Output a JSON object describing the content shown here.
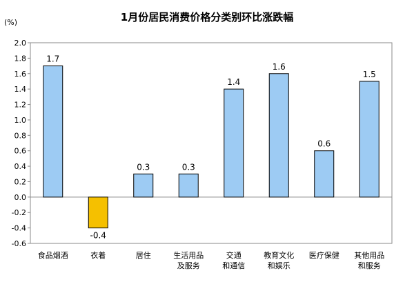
{
  "chart_data": {
    "type": "bar",
    "title": "1月份居民消费价格分类别环比涨跌幅",
    "unit": "(%)",
    "categories": [
      [
        "食品烟酒"
      ],
      [
        "衣着"
      ],
      [
        "居住"
      ],
      [
        "生活用品",
        "及服务"
      ],
      [
        "交通",
        "和通信"
      ],
      [
        "教育文化",
        "和娱乐"
      ],
      [
        "医疗保健"
      ],
      [
        "其他用品",
        "和服务"
      ]
    ],
    "values": [
      1.7,
      -0.4,
      0.3,
      0.3,
      1.4,
      1.6,
      0.6,
      1.5
    ],
    "value_labels": [
      "1.7",
      "-0.4",
      "0.3",
      "0.3",
      "1.4",
      "1.6",
      "0.6",
      "1.5"
    ],
    "ylim": [
      -0.6,
      2.0
    ],
    "yticks": [
      "2.0",
      "1.8",
      "1.6",
      "1.4",
      "1.2",
      "1.0",
      "0.8",
      "0.6",
      "0.4",
      "0.2",
      "0.0",
      "-0.2",
      "-0.4",
      "-0.6"
    ],
    "colors": {
      "positive": "#9DCBF3",
      "negative": "#F5C000",
      "stroke": "#000000"
    },
    "grid": false,
    "legend": "none"
  }
}
